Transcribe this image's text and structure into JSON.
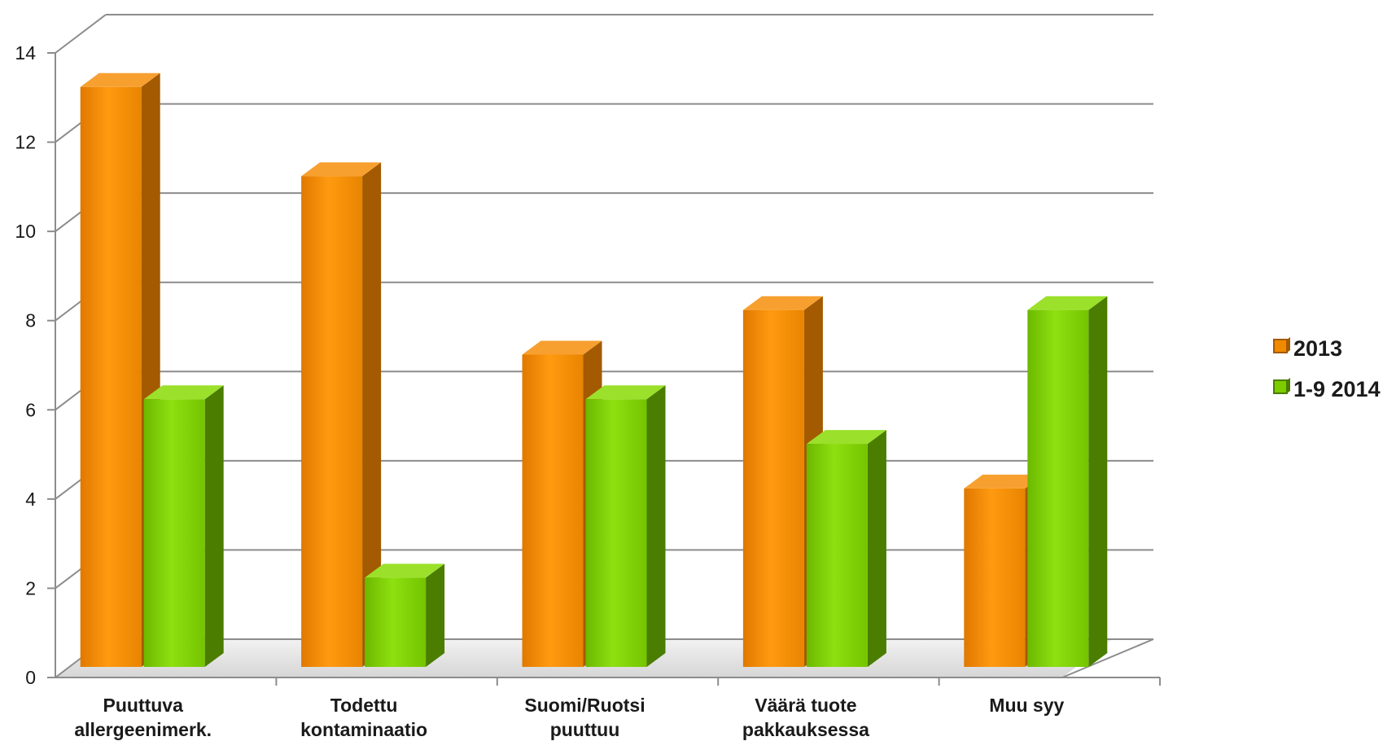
{
  "chart_data": {
    "type": "bar",
    "style": "3d-clustered-column",
    "categories": [
      [
        "Puuttuva",
        "allergeenimerk."
      ],
      [
        "Todettu",
        "kontaminaatio"
      ],
      [
        "Suomi/Ruotsi",
        "puuttuu"
      ],
      [
        "Väärä tuote",
        "pakkauksessa"
      ],
      [
        "Muu syy"
      ]
    ],
    "series": [
      {
        "name": "2013",
        "values": [
          13,
          11,
          7,
          8,
          4
        ],
        "color": "#f08a00",
        "side_color": "#a35a00",
        "top_color": "#f7a030"
      },
      {
        "name": "1-9 2014",
        "values": [
          6,
          2,
          6,
          5,
          8
        ],
        "color": "#7ccc00",
        "side_color": "#4a7d00",
        "top_color": "#9be02a"
      }
    ],
    "ylim": [
      0,
      14
    ],
    "yticks": [
      0,
      2,
      4,
      6,
      8,
      10,
      12,
      14
    ],
    "grid": true,
    "legend_position": "right",
    "colors": {
      "grid": "#8c8c8c",
      "floor_shadow": "#d9d9d9"
    }
  }
}
